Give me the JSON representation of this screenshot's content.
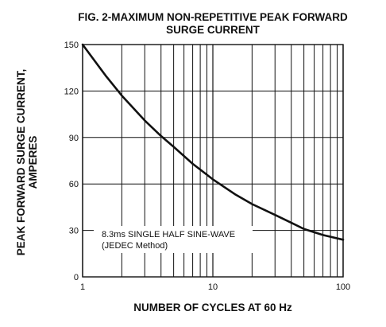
{
  "chart_data": {
    "type": "line",
    "title_line1": "FIG. 2-MAXIMUM NON-REPETITIVE PEAK FORWARD",
    "title_line2": "SURGE CURRENT",
    "xlabel": "NUMBER OF CYCLES AT 60 Hz",
    "ylabel_line1": "PEAK  FORWARD SURGE CURRENT,",
    "ylabel_line2": "AMPERES",
    "x_scale": "log",
    "xlim": [
      1,
      100
    ],
    "ylim": [
      0,
      150
    ],
    "x_ticks": [
      1,
      10,
      100
    ],
    "x_tick_labels": [
      "1",
      "10",
      "100"
    ],
    "y_ticks": [
      0,
      30,
      60,
      90,
      120,
      150
    ],
    "y_tick_labels": [
      "0",
      "30",
      "60",
      "90",
      "120",
      "150"
    ],
    "grid": true,
    "annotation_line1": "8.3ms SINGLE HALF SINE-WAVE",
    "annotation_line2": "(JEDEC Method)",
    "series": [
      {
        "x": [
          1,
          1.5,
          2,
          3,
          4,
          5,
          7,
          10,
          15,
          20,
          30,
          40,
          50,
          70,
          100
        ],
        "values": [
          150,
          130,
          117,
          101,
          91,
          84,
          73,
          63,
          53,
          47,
          40,
          35,
          31,
          27,
          24
        ]
      }
    ]
  }
}
